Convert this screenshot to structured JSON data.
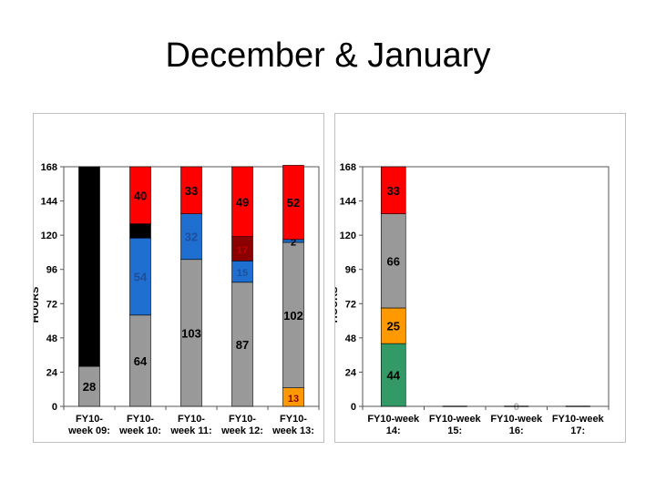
{
  "slide": {
    "title": "December & January"
  },
  "chart_data": [
    {
      "type": "bar",
      "stacked": true,
      "ylabel": "HOURS",
      "ylim": [
        0,
        168
      ],
      "yticks": [
        0,
        24,
        48,
        72,
        96,
        120,
        144,
        168
      ],
      "categories": [
        [
          "FY10-",
          "week 09:"
        ],
        [
          "FY10-",
          "week 10:"
        ],
        [
          "FY10-",
          "week 11:"
        ],
        [
          "FY10-",
          "week 12:"
        ],
        [
          "FY10-",
          "week 13:"
        ]
      ],
      "segments": [
        [
          {
            "value": 28,
            "color": "#999999",
            "label": "28",
            "labelColor": "#000000"
          },
          {
            "value": 140,
            "color": "#000000",
            "label": "",
            "labelColor": "#000000"
          }
        ],
        [
          {
            "value": 64,
            "color": "#999999",
            "label": "64",
            "labelColor": "#000000"
          },
          {
            "value": 54,
            "color": "#1f6fd1",
            "label": "54",
            "labelColor": "#1f4e9a"
          },
          {
            "value": 10,
            "color": "#000000",
            "label": "",
            "labelColor": "#000000"
          },
          {
            "value": 40,
            "color": "#ff0000",
            "label": "40",
            "labelColor": "#000000"
          }
        ],
        [
          {
            "value": 103,
            "color": "#999999",
            "label": "103",
            "labelColor": "#000000"
          },
          {
            "value": 32,
            "color": "#1f6fd1",
            "label": "32",
            "labelColor": "#1f4e9a"
          },
          {
            "value": 33,
            "color": "#ff0000",
            "label": "33",
            "labelColor": "#000000"
          }
        ],
        [
          {
            "value": 87,
            "color": "#999999",
            "label": "87",
            "labelColor": "#000000"
          },
          {
            "value": 15,
            "color": "#1f6fd1",
            "label": "15",
            "labelColor": "#1f4e9a"
          },
          {
            "value": 17,
            "color": "#8b0000",
            "label": "17",
            "labelColor": "#c00000"
          },
          {
            "value": 49,
            "color": "#ff0000",
            "label": "49",
            "labelColor": "#000000"
          }
        ],
        [
          {
            "value": 13,
            "color": "#ff9900",
            "label": "13",
            "labelColor": "#8b0000"
          },
          {
            "value": 102,
            "color": "#999999",
            "label": "102",
            "labelColor": "#000000"
          },
          {
            "value": 2,
            "color": "#1f6fd1",
            "label": "2",
            "labelColor": "#000000"
          },
          {
            "value": 52,
            "color": "#ff0000",
            "label": "52",
            "labelColor": "#000000"
          }
        ]
      ]
    },
    {
      "type": "bar",
      "stacked": true,
      "ylabel": "HOURS",
      "ylim": [
        0,
        168
      ],
      "yticks": [
        0,
        24,
        48,
        72,
        96,
        120,
        144,
        168
      ],
      "categories": [
        [
          "FY10-week",
          "14:"
        ],
        [
          "FY10-week",
          "15:"
        ],
        [
          "FY10-week",
          "16:"
        ],
        [
          "FY10-week",
          "17:"
        ]
      ],
      "segments": [
        [
          {
            "value": 44,
            "color": "#339966",
            "label": "44",
            "labelColor": "#000000"
          },
          {
            "value": 25,
            "color": "#ff9900",
            "label": "25",
            "labelColor": "#000000"
          },
          {
            "value": 66,
            "color": "#999999",
            "label": "66",
            "labelColor": "#000000"
          },
          {
            "value": 33,
            "color": "#ff0000",
            "label": "33",
            "labelColor": "#000000"
          }
        ],
        [],
        [],
        []
      ],
      "annotations": [
        {
          "category": 2,
          "value": 0,
          "label": "0",
          "labelColor": "#aaaaaa"
        }
      ]
    }
  ]
}
